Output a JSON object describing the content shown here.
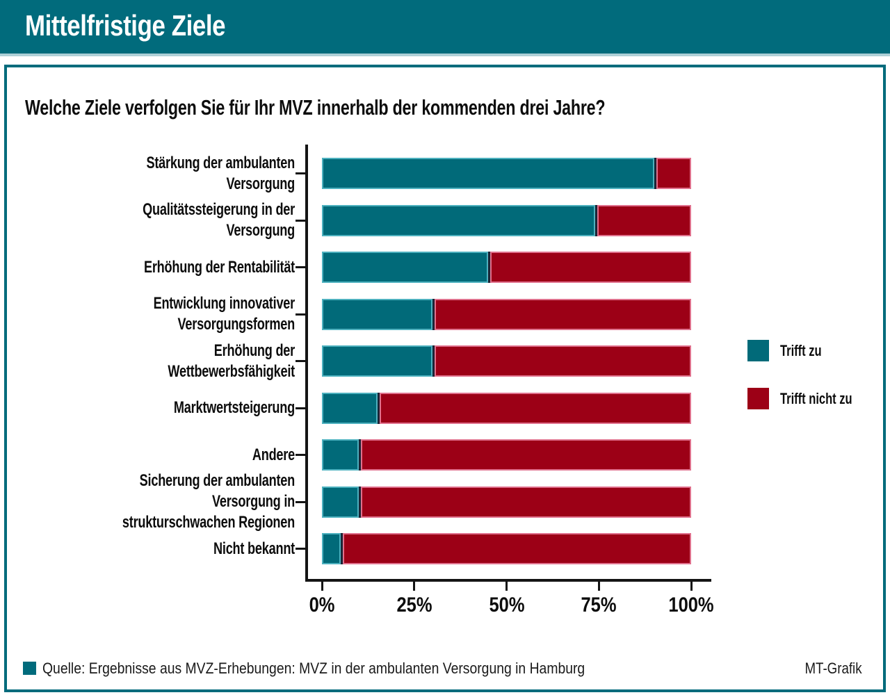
{
  "header": {
    "title": "Mittelfristige Ziele"
  },
  "question": "Welche Ziele verfolgen Sie für Ihr MVZ innerhalb der kommenden drei Jahre?",
  "colors": {
    "brand_teal": "#016b7c",
    "bar_teal": "#016a79",
    "bar_red": "#9c0016",
    "teal_segment_border": "#4db1bf",
    "red_segment_border": "#e0718d",
    "segment_divider": "#1c2536",
    "header_underline": "#aed0d7",
    "axis": "#141414"
  },
  "legend": [
    {
      "label": "Trifft zu",
      "color": "#016a79"
    },
    {
      "label": "Trifft nicht zu",
      "color": "#9c0016"
    }
  ],
  "footer": {
    "source": "Quelle: Ergebnisse aus MVZ-Erhebungen: MVZ in der ambulanten Versorgung in Hamburg",
    "credit": "MT-Grafik"
  },
  "chart_data": {
    "type": "bar",
    "orientation": "horizontal",
    "stacked": true,
    "title": "Welche Ziele verfolgen Sie für Ihr MVZ innerhalb der kommenden drei Jahre?",
    "categories": [
      "Stärkung der ambulanten Versorgung",
      "Qualitätssteigerung in der Versorgung",
      "Erhöhung der Rentabilität",
      "Entwicklung innovativer\nVersorgungsformen",
      "Erhöhung der Wettbewerbsfähigkeit",
      "Marktwertsteigerung",
      "Andere",
      "Sicherung der ambulanten Versorgung in\nstrukturschwachen Regionen",
      "Nicht bekannt"
    ],
    "series": [
      {
        "name": "Trifft zu",
        "color": "#016a79",
        "values": [
          90,
          74,
          45,
          30,
          30,
          15,
          10,
          10,
          5
        ]
      },
      {
        "name": "Trifft nicht zu",
        "color": "#9c0016",
        "values": [
          10,
          26,
          55,
          70,
          70,
          85,
          90,
          90,
          95
        ]
      }
    ],
    "unit": "%",
    "xlim": [
      0,
      100
    ],
    "x_ticks": [
      "0%",
      "25%",
      "50%",
      "75%",
      "100%"
    ],
    "grid": false,
    "legend_position": "right"
  }
}
